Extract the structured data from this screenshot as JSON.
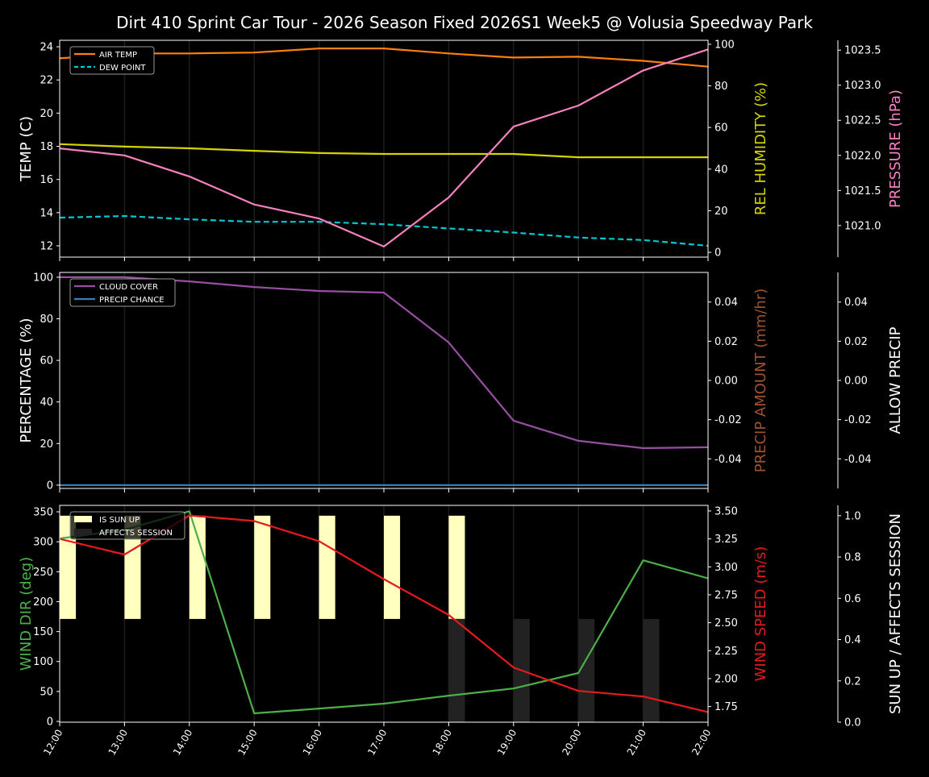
{
  "title": "Dirt 410 Sprint Car Tour - 2026 Season Fixed 2026S1 Week5 @ Volusia Speedway Park",
  "chart_data": [
    {
      "type": "line",
      "x": [
        "12:00",
        "13:00",
        "14:00",
        "15:00",
        "16:00",
        "17:00",
        "18:00",
        "19:00",
        "20:00",
        "21:00",
        "22:00"
      ],
      "grid": "vertical",
      "legend": "top-left",
      "axes": [
        {
          "side": "left",
          "label": "TEMP (C)",
          "label_color": "#ffffff",
          "ylim": [
            11.32,
            24.39
          ],
          "ticks": [
            12,
            14,
            16,
            18,
            20,
            22,
            24
          ],
          "decimals": 0
        },
        {
          "side": "right",
          "label": "REL HUMIDITY (%)",
          "label_color": "#d4d400",
          "ylim": [
            -2.3,
            101.9
          ],
          "ticks": [
            0,
            20,
            40,
            60,
            80,
            100
          ],
          "decimals": 0
        },
        {
          "side": "right-outer",
          "label": "PRESSURE (hPa)",
          "label_color": "#f781bf",
          "ylim": [
            1020.55,
            1023.64
          ],
          "ticks": [
            1021.0,
            1021.5,
            1022.0,
            1022.5,
            1023.0,
            1023.5
          ],
          "decimals": 1
        }
      ],
      "series": [
        {
          "name": "AIR TEMP",
          "axis": 0,
          "color": "#ff7f0e",
          "dash": false,
          "legend": true,
          "values": [
            23.3,
            23.6,
            23.6,
            23.65,
            23.9,
            23.9,
            23.6,
            23.35,
            23.4,
            23.15,
            22.8
          ]
        },
        {
          "name": "DEW POINT",
          "axis": 0,
          "color": "#00c8d0",
          "dash": true,
          "legend": true,
          "values": [
            13.7,
            13.8,
            13.6,
            13.45,
            13.45,
            13.3,
            13.05,
            12.8,
            12.5,
            12.35,
            12.0
          ]
        },
        {
          "axis": 1,
          "color": "#d4d400",
          "dash": false,
          "legend": false,
          "values": [
            52,
            50.8,
            50,
            48.8,
            47.7,
            47.3,
            47.3,
            47.3,
            45.7,
            45.7,
            45.7
          ]
        },
        {
          "axis": 2,
          "color": "#f781bf",
          "dash": false,
          "legend": false,
          "values": [
            1022.1,
            1022.0,
            1021.7,
            1021.3,
            1021.1,
            1020.7,
            1021.4,
            1022.41,
            1022.71,
            1023.21,
            1023.51
          ]
        }
      ]
    },
    {
      "type": "line",
      "x": [
        "12:00",
        "13:00",
        "14:00",
        "15:00",
        "16:00",
        "17:00",
        "18:00",
        "19:00",
        "20:00",
        "21:00",
        "22:00"
      ],
      "grid": "vertical",
      "legend": "top-left",
      "axes": [
        {
          "side": "left",
          "label": "PERCENTAGE (%)",
          "label_color": "#ffffff",
          "ylim": [
            -1.6,
            102.3
          ],
          "ticks": [
            0,
            20,
            40,
            60,
            80,
            100
          ],
          "decimals": 0
        },
        {
          "side": "right",
          "label": "PRECIP AMOUNT (mm/hr)",
          "label_color": "#a0522d",
          "ylim": [
            -0.0551,
            0.0551
          ],
          "ticks": [
            -0.04,
            -0.02,
            0.0,
            0.02,
            0.04
          ],
          "decimals": 2
        },
        {
          "side": "right-outer",
          "label": "ALLOW PRECIP",
          "label_color": "#ffffff",
          "ylim": [
            -0.0551,
            0.0551
          ],
          "ticks": [
            -0.04,
            -0.02,
            0.0,
            0.02,
            0.04
          ],
          "decimals": 2
        }
      ],
      "series": [
        {
          "name": "CLOUD COVER",
          "axis": 0,
          "color": "#984ea3",
          "dash": false,
          "legend": true,
          "values": [
            100,
            100,
            98,
            95.3,
            93.4,
            92.6,
            68.6,
            31,
            21.3,
            17.8,
            18.2
          ]
        },
        {
          "name": "PRECIP CHANCE",
          "axis": 0,
          "color": "#377eb8",
          "dash": false,
          "legend": true,
          "values": [
            0,
            0,
            0,
            0,
            0,
            0,
            0,
            0,
            0,
            0,
            0
          ]
        }
      ]
    },
    {
      "type": "line",
      "x": [
        "12:00",
        "13:00",
        "14:00",
        "15:00",
        "16:00",
        "17:00",
        "18:00",
        "19:00",
        "20:00",
        "21:00",
        "22:00"
      ],
      "grid": "vertical",
      "legend": "top-left",
      "axes": [
        {
          "side": "left",
          "label": "WIND DIR (deg)",
          "label_color": "#4daf4a",
          "ylim": [
            -1.3,
            360.8
          ],
          "ticks": [
            0,
            50,
            100,
            150,
            200,
            250,
            300,
            350
          ],
          "decimals": 0
        },
        {
          "side": "right",
          "label": "WIND SPEED (m/s)",
          "label_color": "#e41a1c",
          "ylim": [
            1.61,
            3.55
          ],
          "ticks": [
            1.75,
            2.0,
            2.25,
            2.5,
            2.75,
            3.0,
            3.25,
            3.5
          ],
          "decimals": 2
        },
        {
          "side": "right-outer",
          "label": "SUN UP / AFFECTS SESSION",
          "label_color": "#ffffff",
          "ylim": [
            0,
            1.05
          ],
          "ticks": [
            0.0,
            0.2,
            0.4,
            0.6,
            0.8,
            1.0
          ],
          "decimals": 1
        }
      ],
      "bars": [
        {
          "name": "IS SUN UP",
          "axis": 2,
          "color": "#ffffc0",
          "base": 0.5,
          "top": 1.0,
          "values": [
            1,
            1,
            1,
            1,
            1,
            1,
            1,
            0,
            0,
            0,
            0
          ]
        },
        {
          "name": "AFFECTS SESSION",
          "axis": 2,
          "color": "#222222",
          "base": 0.0,
          "top": 0.5,
          "values": [
            0,
            0,
            0,
            0,
            0,
            0,
            1,
            1,
            1,
            1,
            0
          ]
        }
      ],
      "series": [
        {
          "axis": 0,
          "color": "#4daf4a",
          "dash": false,
          "legend": false,
          "values": [
            305.5,
            320,
            351,
            13.5,
            21.5,
            29.6,
            43,
            55,
            80.8,
            269,
            239
          ]
        },
        {
          "axis": 1,
          "color": "#e41a1c",
          "dash": false,
          "legend": false,
          "values": [
            3.25,
            3.11,
            3.46,
            3.41,
            3.23,
            2.89,
            2.57,
            2.1,
            1.89,
            1.84,
            1.7
          ]
        }
      ]
    }
  ]
}
